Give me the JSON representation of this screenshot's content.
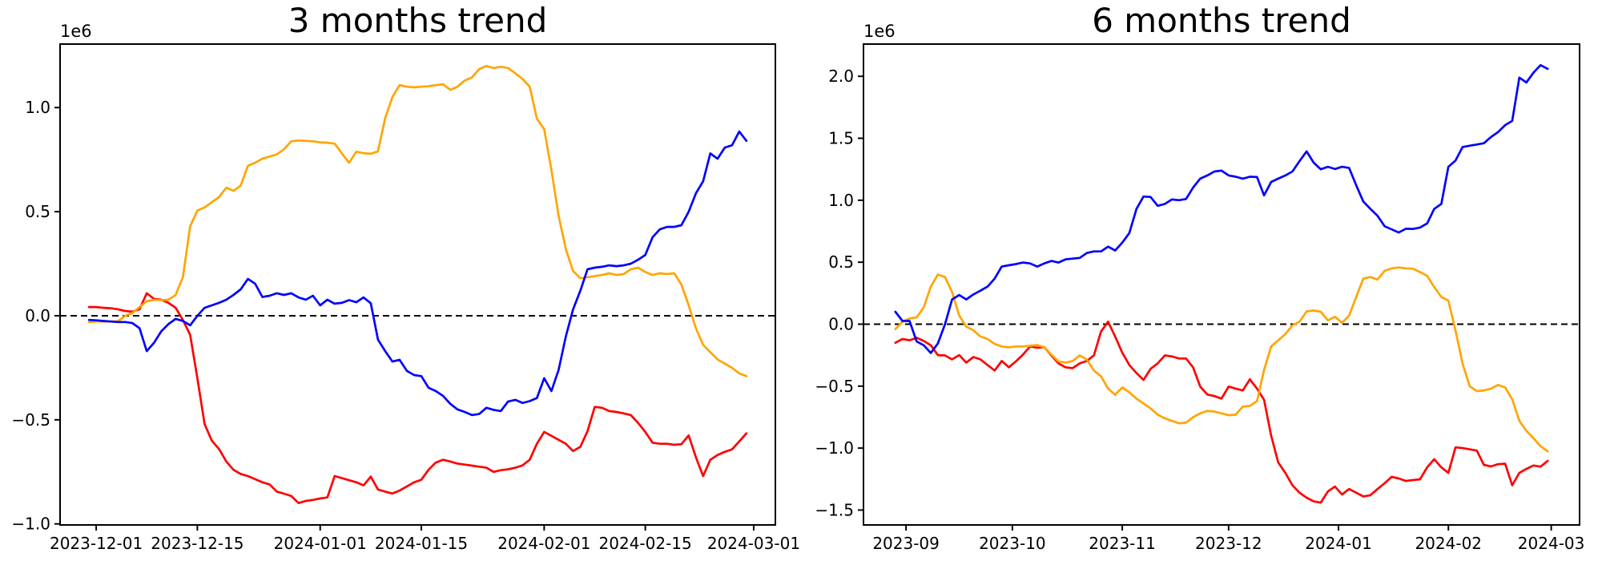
{
  "figure": {
    "background": "#ffffff"
  },
  "colors": {
    "blue": "#0000ff",
    "orange": "#ffa500",
    "red": "#ff0000",
    "axis": "#000000",
    "zero_line": "#000000"
  },
  "chart_data": [
    {
      "type": "line",
      "title": "3 months trend",
      "offset_label": "1e6",
      "xlabel": "",
      "ylabel": "",
      "grid": false,
      "legend_position": "none",
      "zero_line_dashed": true,
      "xlim": [
        "2023-11-26",
        "2024-03-04"
      ],
      "ylim": [
        -1.005,
        1.305
      ],
      "x_ticks": [
        {
          "date": "2023-12-01",
          "label": "2023-12-01"
        },
        {
          "date": "2023-12-15",
          "label": "2023-12-15"
        },
        {
          "date": "2024-01-01",
          "label": "2024-01-01"
        },
        {
          "date": "2024-01-15",
          "label": "2024-01-15"
        },
        {
          "date": "2024-02-01",
          "label": "2024-02-01"
        },
        {
          "date": "2024-02-15",
          "label": "2024-02-15"
        },
        {
          "date": "2024-03-01",
          "label": "2024-03-01"
        }
      ],
      "y_ticks": [
        {
          "value": 1.0,
          "label": "1.0"
        },
        {
          "value": 0.5,
          "label": "0.5"
        },
        {
          "value": 0.0,
          "label": "0.0"
        },
        {
          "value": -0.5,
          "label": "−0.5"
        },
        {
          "value": -1.0,
          "label": "−1.0"
        }
      ],
      "series": [
        {
          "name": "red-line",
          "color_key": "red",
          "start": "2023-11-30",
          "step_days": 1,
          "values": [
            0.042,
            0.042,
            0.038,
            0.036,
            0.031,
            0.023,
            0.019,
            0.031,
            0.108,
            0.081,
            0.077,
            0.062,
            0.038,
            -0.02,
            -0.092,
            -0.3,
            -0.52,
            -0.6,
            -0.64,
            -0.7,
            -0.74,
            -0.76,
            -0.77,
            -0.785,
            -0.8,
            -0.81,
            -0.845,
            -0.855,
            -0.866,
            -0.9,
            -0.89,
            -0.885,
            -0.878,
            -0.873,
            -0.77,
            -0.78,
            -0.79,
            -0.8,
            -0.815,
            -0.773,
            -0.835,
            -0.845,
            -0.854,
            -0.84,
            -0.82,
            -0.8,
            -0.788,
            -0.74,
            -0.705,
            -0.692,
            -0.7,
            -0.71,
            -0.715,
            -0.72,
            -0.725,
            -0.73,
            -0.75,
            -0.742,
            -0.738,
            -0.73,
            -0.719,
            -0.692,
            -0.615,
            -0.558,
            -0.577,
            -0.596,
            -0.615,
            -0.65,
            -0.63,
            -0.554,
            -0.438,
            -0.442,
            -0.458,
            -0.462,
            -0.469,
            -0.477,
            -0.515,
            -0.558,
            -0.61,
            -0.615,
            -0.615,
            -0.62,
            -0.617,
            -0.575,
            -0.68,
            -0.77,
            -0.692,
            -0.669,
            -0.654,
            -0.642,
            -0.604,
            -0.565
          ]
        },
        {
          "name": "orange-line",
          "color_key": "orange",
          "start": "2023-11-30",
          "step_days": 1,
          "values": [
            -0.03,
            -0.028,
            -0.028,
            -0.027,
            -0.027,
            0.0,
            0.012,
            0.042,
            0.069,
            0.077,
            0.075,
            0.077,
            0.1,
            0.185,
            0.43,
            0.505,
            0.52,
            0.545,
            0.57,
            0.615,
            0.6,
            0.625,
            0.72,
            0.735,
            0.755,
            0.765,
            0.775,
            0.8,
            0.838,
            0.842,
            0.84,
            0.838,
            0.833,
            0.831,
            0.827,
            0.78,
            0.735,
            0.788,
            0.781,
            0.778,
            0.79,
            0.95,
            1.05,
            1.108,
            1.1,
            1.097,
            1.1,
            1.102,
            1.108,
            1.112,
            1.085,
            1.1,
            1.13,
            1.145,
            1.185,
            1.2,
            1.19,
            1.196,
            1.19,
            1.165,
            1.138,
            1.1,
            0.946,
            0.896,
            0.7,
            0.48,
            0.32,
            0.215,
            0.18,
            0.185,
            0.19,
            0.196,
            0.204,
            0.196,
            0.2,
            0.223,
            0.231,
            0.21,
            0.196,
            0.204,
            0.2,
            0.204,
            0.15,
            0.05,
            -0.06,
            -0.14,
            -0.175,
            -0.21,
            -0.23,
            -0.25,
            -0.277,
            -0.29
          ]
        },
        {
          "name": "blue-line",
          "color_key": "blue",
          "start": "2023-11-30",
          "step_days": 1,
          "values": [
            -0.02,
            -0.022,
            -0.025,
            -0.028,
            -0.03,
            -0.03,
            -0.035,
            -0.06,
            -0.17,
            -0.13,
            -0.075,
            -0.04,
            -0.015,
            -0.025,
            -0.046,
            0.0,
            0.038,
            0.05,
            0.062,
            0.077,
            0.1,
            0.127,
            0.177,
            0.154,
            0.09,
            0.096,
            0.108,
            0.1,
            0.108,
            0.088,
            0.077,
            0.096,
            0.05,
            0.077,
            0.058,
            0.062,
            0.075,
            0.065,
            0.088,
            0.06,
            -0.115,
            -0.17,
            -0.22,
            -0.212,
            -0.265,
            -0.285,
            -0.29,
            -0.346,
            -0.362,
            -0.385,
            -0.423,
            -0.45,
            -0.462,
            -0.477,
            -0.472,
            -0.442,
            -0.452,
            -0.458,
            -0.412,
            -0.404,
            -0.419,
            -0.41,
            -0.395,
            -0.3,
            -0.362,
            -0.26,
            -0.1,
            0.03,
            0.12,
            0.223,
            0.231,
            0.235,
            0.242,
            0.238,
            0.242,
            0.25,
            0.269,
            0.292,
            0.377,
            0.415,
            0.427,
            0.427,
            0.435,
            0.5,
            0.588,
            0.646,
            0.78,
            0.754,
            0.808,
            0.819,
            0.885,
            0.84
          ]
        }
      ]
    },
    {
      "type": "line",
      "title": "6 months trend",
      "offset_label": "1e6",
      "xlabel": "",
      "ylabel": "",
      "grid": false,
      "legend_position": "none",
      "zero_line_dashed": true,
      "xlim": [
        "2023-08-20",
        "2024-03-09"
      ],
      "ylim": [
        -1.62,
        2.26
      ],
      "x_ticks": [
        {
          "date": "2023-09-01",
          "label": "2023-09"
        },
        {
          "date": "2023-10-01",
          "label": "2023-10"
        },
        {
          "date": "2023-11-01",
          "label": "2023-11"
        },
        {
          "date": "2023-12-01",
          "label": "2023-12"
        },
        {
          "date": "2024-01-01",
          "label": "2024-01"
        },
        {
          "date": "2024-02-01",
          "label": "2024-02"
        },
        {
          "date": "2024-03-01",
          "label": "2024-03"
        }
      ],
      "y_ticks": [
        {
          "value": 2.0,
          "label": "2.0"
        },
        {
          "value": 1.5,
          "label": "1.5"
        },
        {
          "value": 1.0,
          "label": "1.0"
        },
        {
          "value": 0.5,
          "label": "0.5"
        },
        {
          "value": 0.0,
          "label": "0.0"
        },
        {
          "value": -0.5,
          "label": "−0.5"
        },
        {
          "value": -1.0,
          "label": "−1.0"
        },
        {
          "value": -1.5,
          "label": "−1.5"
        }
      ],
      "series": [
        {
          "name": "red-line",
          "color_key": "red",
          "start": "2023-08-29",
          "step_days": 2,
          "values": [
            -0.15,
            -0.12,
            -0.13,
            -0.11,
            -0.135,
            -0.17,
            -0.25,
            -0.252,
            -0.284,
            -0.25,
            -0.31,
            -0.265,
            -0.284,
            -0.33,
            -0.374,
            -0.297,
            -0.348,
            -0.3,
            -0.245,
            -0.18,
            -0.19,
            -0.185,
            -0.252,
            -0.316,
            -0.348,
            -0.355,
            -0.316,
            -0.297,
            -0.252,
            -0.06,
            0.02,
            -0.1,
            -0.23,
            -0.33,
            -0.394,
            -0.45,
            -0.36,
            -0.316,
            -0.252,
            -0.26,
            -0.277,
            -0.277,
            -0.35,
            -0.503,
            -0.568,
            -0.58,
            -0.6,
            -0.503,
            -0.52,
            -0.535,
            -0.445,
            -0.52,
            -0.61,
            -0.9,
            -1.116,
            -1.2,
            -1.3,
            -1.36,
            -1.4,
            -1.43,
            -1.44,
            -1.35,
            -1.31,
            -1.374,
            -1.33,
            -1.36,
            -1.39,
            -1.38,
            -1.33,
            -1.284,
            -1.232,
            -1.245,
            -1.265,
            -1.258,
            -1.252,
            -1.155,
            -1.09,
            -1.155,
            -1.2,
            -0.994,
            -1.0,
            -1.01,
            -1.02,
            -1.135,
            -1.148,
            -1.13,
            -1.126,
            -1.3,
            -1.2,
            -1.168,
            -1.14,
            -1.15,
            -1.103
          ]
        },
        {
          "name": "orange-line",
          "color_key": "orange",
          "start": "2023-08-29",
          "step_days": 2,
          "values": [
            -0.04,
            0.02,
            0.045,
            0.055,
            0.135,
            0.303,
            0.4,
            0.38,
            0.26,
            0.07,
            -0.02,
            -0.05,
            -0.1,
            -0.12,
            -0.16,
            -0.18,
            -0.187,
            -0.18,
            -0.18,
            -0.175,
            -0.168,
            -0.187,
            -0.245,
            -0.3,
            -0.31,
            -0.297,
            -0.252,
            -0.285,
            -0.374,
            -0.42,
            -0.52,
            -0.57,
            -0.51,
            -0.55,
            -0.6,
            -0.64,
            -0.68,
            -0.73,
            -0.76,
            -0.78,
            -0.8,
            -0.795,
            -0.75,
            -0.72,
            -0.7,
            -0.705,
            -0.72,
            -0.735,
            -0.73,
            -0.665,
            -0.66,
            -0.62,
            -0.37,
            -0.18,
            -0.13,
            -0.08,
            -0.01,
            0.02,
            0.103,
            0.11,
            0.1,
            0.03,
            0.06,
            0.01,
            0.07,
            0.22,
            0.368,
            0.38,
            0.36,
            0.43,
            0.45,
            0.458,
            0.45,
            0.448,
            0.42,
            0.39,
            0.3,
            0.22,
            0.19,
            -0.05,
            -0.32,
            -0.5,
            -0.54,
            -0.535,
            -0.52,
            -0.49,
            -0.51,
            -0.606,
            -0.78,
            -0.86,
            -0.92,
            -0.985,
            -1.026
          ]
        },
        {
          "name": "blue-line",
          "color_key": "blue",
          "start": "2023-08-29",
          "step_days": 2,
          "values": [
            0.1,
            0.026,
            0.026,
            -0.14,
            -0.17,
            -0.232,
            -0.155,
            0.0,
            0.2,
            0.235,
            0.2,
            0.24,
            0.27,
            0.303,
            0.368,
            0.465,
            0.475,
            0.485,
            0.497,
            0.49,
            0.465,
            0.49,
            0.51,
            0.497,
            0.523,
            0.529,
            0.535,
            0.574,
            0.587,
            0.587,
            0.626,
            0.594,
            0.658,
            0.735,
            0.93,
            1.03,
            1.026,
            0.955,
            0.97,
            1.006,
            1.0,
            1.01,
            1.103,
            1.174,
            1.2,
            1.232,
            1.239,
            1.2,
            1.19,
            1.174,
            1.19,
            1.187,
            1.039,
            1.148,
            1.174,
            1.2,
            1.232,
            1.316,
            1.394,
            1.303,
            1.25,
            1.27,
            1.252,
            1.27,
            1.26,
            1.12,
            0.99,
            0.93,
            0.875,
            0.79,
            0.765,
            0.74,
            0.77,
            0.768,
            0.78,
            0.813,
            0.93,
            0.97,
            1.27,
            1.32,
            1.43,
            1.44,
            1.45,
            1.46,
            1.51,
            1.55,
            1.606,
            1.64,
            1.99,
            1.95,
            2.03,
            2.09,
            2.06
          ]
        }
      ]
    }
  ]
}
